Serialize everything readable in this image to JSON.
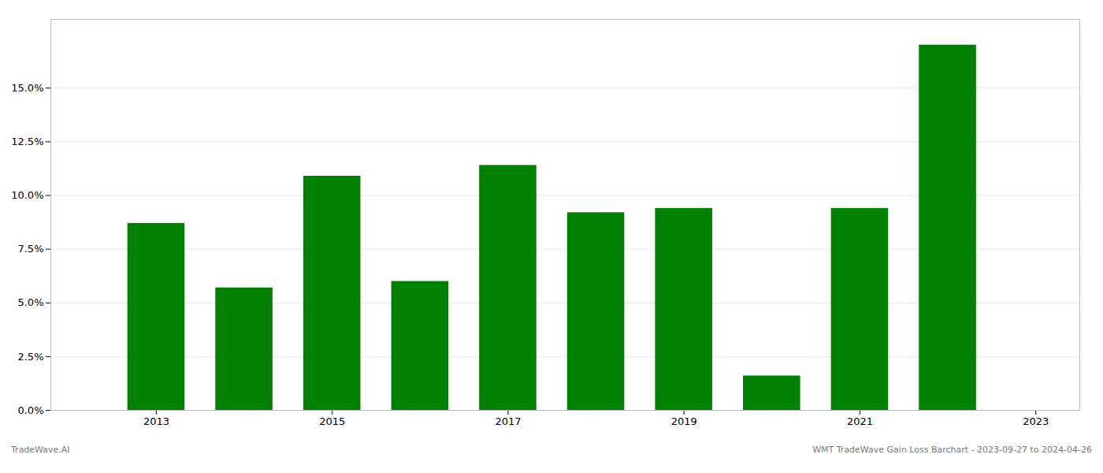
{
  "chart_data": {
    "type": "bar",
    "x": [
      2013,
      2014,
      2015,
      2016,
      2017,
      2018,
      2019,
      2020,
      2021,
      2022
    ],
    "values": [
      0.087,
      0.057,
      0.109,
      0.06,
      0.114,
      0.092,
      0.094,
      0.016,
      0.094,
      0.17
    ],
    "color": "#008000",
    "xlim": [
      2011.8,
      2023.5
    ],
    "xticks": [
      2013,
      2015,
      2017,
      2019,
      2021,
      2023
    ],
    "ylim": [
      0,
      0.182
    ],
    "yticks": [
      {
        "value": 0.0,
        "label": "0.0%"
      },
      {
        "value": 0.025,
        "label": "2.5%"
      },
      {
        "value": 0.05,
        "label": "5.0%"
      },
      {
        "value": 0.075,
        "label": "7.5%"
      },
      {
        "value": 0.1,
        "label": "10.0%"
      },
      {
        "value": 0.125,
        "label": "12.5%"
      },
      {
        "value": 0.15,
        "label": "15.0%"
      }
    ],
    "grid": true,
    "annotations": [
      "TradeWave.AI",
      "WMT TradeWave Gain Loss Barchart - 2023-09-27 to 2024-04-26"
    ]
  }
}
